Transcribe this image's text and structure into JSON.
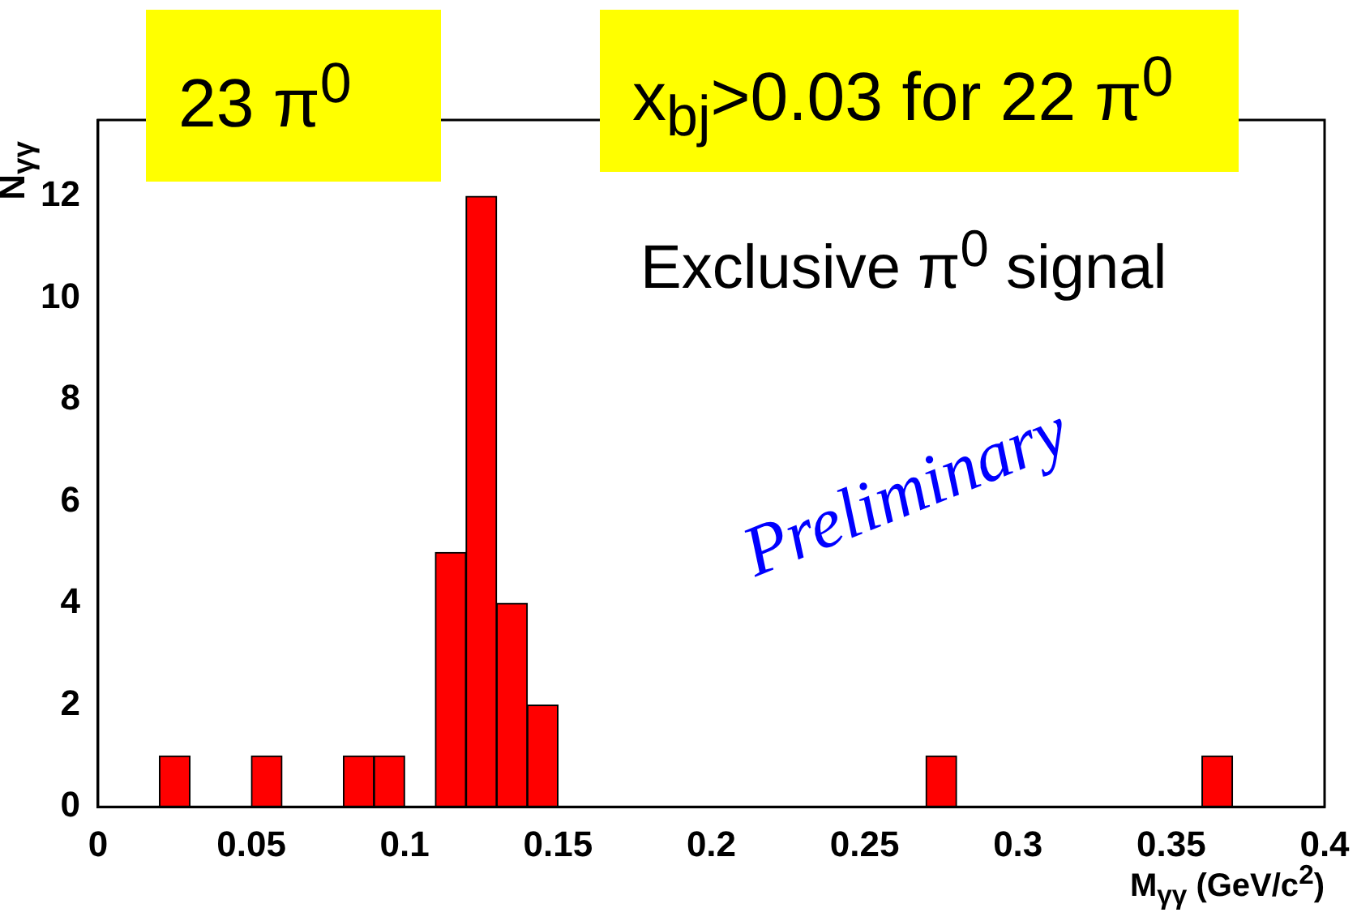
{
  "chart_data": {
    "type": "histogram",
    "xlabel": "M$_{γγ}$ (GeV/c$^{2}$)",
    "ylabel": "N$_{γγ}$",
    "bins": [
      0,
      0.01,
      0.02,
      0.03,
      0.04,
      0.05,
      0.06,
      0.07,
      0.08,
      0.09,
      0.1,
      0.11,
      0.12,
      0.13,
      0.14,
      0.15,
      0.16,
      0.17,
      0.18,
      0.19,
      0.2,
      0.21,
      0.22,
      0.23,
      0.24,
      0.25,
      0.26,
      0.27,
      0.28,
      0.29,
      0.3,
      0.31,
      0.32,
      0.33,
      0.34,
      0.35,
      0.36,
      0.37,
      0.38,
      0.39,
      0.4
    ],
    "values": [
      0,
      0,
      1,
      0,
      0,
      1,
      0,
      0,
      1,
      1,
      0,
      5,
      12,
      4,
      2,
      0,
      0,
      0,
      0,
      0,
      0,
      0,
      0,
      0,
      0,
      0,
      0,
      1,
      0,
      0,
      0,
      0,
      0,
      0,
      0,
      0,
      1,
      0,
      0,
      0
    ],
    "color": "#ff0000",
    "xlim": [
      0,
      0.4
    ],
    "xticks": [
      0,
      0.05,
      0.1,
      0.15,
      0.2,
      0.25,
      0.3,
      0.35,
      0.4
    ],
    "ylim": [
      0,
      13.5
    ],
    "yticks": [
      0,
      2,
      4,
      6,
      8,
      10,
      12
    ],
    "grid": false,
    "legend": false,
    "annotations": [
      "23 π$^{0}$",
      "x$_{bj}$>0.03 for 22 π$^{0}$",
      "Exclusive π$^{0}$ signal",
      "Preliminary"
    ]
  }
}
